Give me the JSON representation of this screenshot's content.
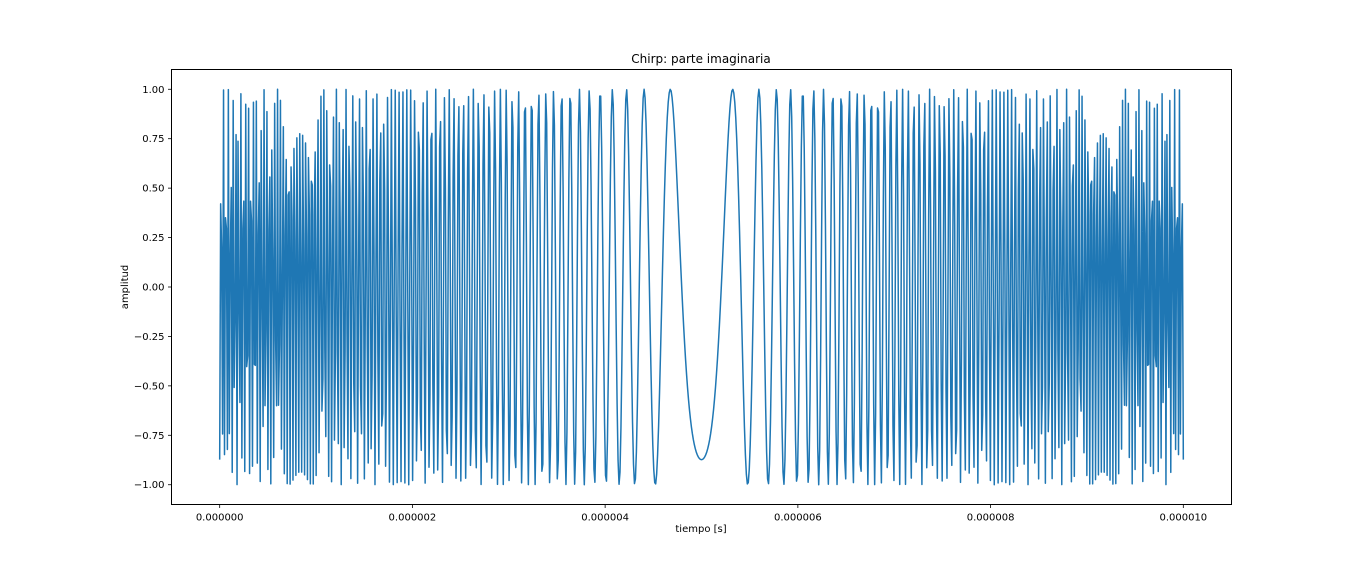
{
  "chart_data": {
    "type": "line",
    "title": "Chirp: parte imaginaria",
    "xlabel": "tiempo [s]",
    "ylabel": "amplitud",
    "xlim": [
      -5e-07,
      1.05e-05
    ],
    "ylim": [
      -1.1,
      1.1
    ],
    "x_ticks": [
      0,
      2e-06,
      4e-06,
      6e-06,
      8e-06,
      1e-05
    ],
    "x_tick_labels": [
      "0.000000",
      "0.000002",
      "0.000004",
      "0.000006",
      "0.000008",
      "0.000010"
    ],
    "y_ticks": [
      1.0,
      0.75,
      0.5,
      0.25,
      0.0,
      -0.25,
      -0.5,
      -0.75,
      -1.0
    ],
    "y_tick_labels": [
      "1.00",
      "0.75",
      "0.50",
      "0.25",
      "0.00",
      "−0.25",
      "−0.50",
      "−0.75",
      "−1.00"
    ],
    "grid": false,
    "series": [
      {
        "color": "#1f77b4",
        "x_range": [
          0,
          1e-05
        ],
        "samples": 1000,
        "waveform": "sin",
        "chirp_rate": 8000000000000,
        "center_time": 5e-06,
        "phase_offset": 200
      }
    ]
  }
}
